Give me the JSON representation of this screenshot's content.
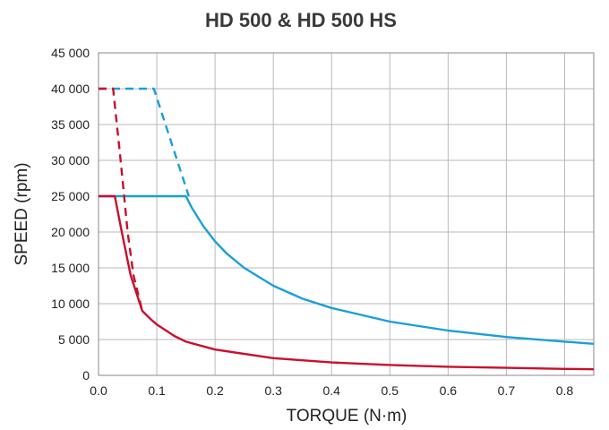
{
  "chart_data": {
    "type": "line",
    "title": "HD 500 & HD 500 HS",
    "xlabel": "TORQUE (N·m)",
    "ylabel": "SPEED (rpm)",
    "xlim": [
      0,
      0.85
    ],
    "ylim": [
      0,
      45000
    ],
    "x_ticks": [
      "0.0",
      "0.1",
      "0.2",
      "0.3",
      "0.4",
      "0.5",
      "0.6",
      "0.7",
      "0.8"
    ],
    "y_ticks": [
      "0",
      "5 000",
      "10 000",
      "15 000",
      "20 000",
      "25 000",
      "30 000",
      "35 000",
      "40 000",
      "45 000"
    ],
    "grid": true,
    "series": [
      {
        "color": "#1a9fd8",
        "style": "solid",
        "points": [
          [
            0,
            25000
          ],
          [
            0.15,
            25000
          ],
          [
            0.16,
            23400
          ],
          [
            0.18,
            20800
          ],
          [
            0.2,
            18700
          ],
          [
            0.22,
            17000
          ],
          [
            0.25,
            15000
          ],
          [
            0.3,
            12500
          ],
          [
            0.35,
            10700
          ],
          [
            0.4,
            9400
          ],
          [
            0.5,
            7500
          ],
          [
            0.6,
            6250
          ],
          [
            0.7,
            5350
          ],
          [
            0.8,
            4700
          ],
          [
            0.85,
            4400
          ]
        ]
      },
      {
        "color": "#1a9fd8",
        "style": "dashed",
        "points": [
          [
            0,
            40000
          ],
          [
            0.095,
            40000
          ],
          [
            0.155,
            25000
          ]
        ]
      },
      {
        "color": "#c8102e",
        "style": "solid",
        "points": [
          [
            0,
            25000
          ],
          [
            0.028,
            25000
          ],
          [
            0.04,
            20000
          ],
          [
            0.055,
            14000
          ],
          [
            0.075,
            9000
          ],
          [
            0.09,
            7800
          ],
          [
            0.1,
            7100
          ],
          [
            0.13,
            5500
          ],
          [
            0.15,
            4700
          ],
          [
            0.2,
            3600
          ],
          [
            0.3,
            2400
          ],
          [
            0.4,
            1800
          ],
          [
            0.5,
            1450
          ],
          [
            0.6,
            1200
          ],
          [
            0.7,
            1050
          ],
          [
            0.8,
            900
          ],
          [
            0.85,
            850
          ]
        ]
      },
      {
        "color": "#c8102e",
        "style": "dashed",
        "points": [
          [
            0,
            40000
          ],
          [
            0.015,
            40000
          ],
          [
            0.025,
            40000
          ],
          [
            0.038,
            30000
          ],
          [
            0.05,
            20000
          ],
          [
            0.06,
            14000
          ],
          [
            0.075,
            9000
          ]
        ]
      }
    ]
  }
}
